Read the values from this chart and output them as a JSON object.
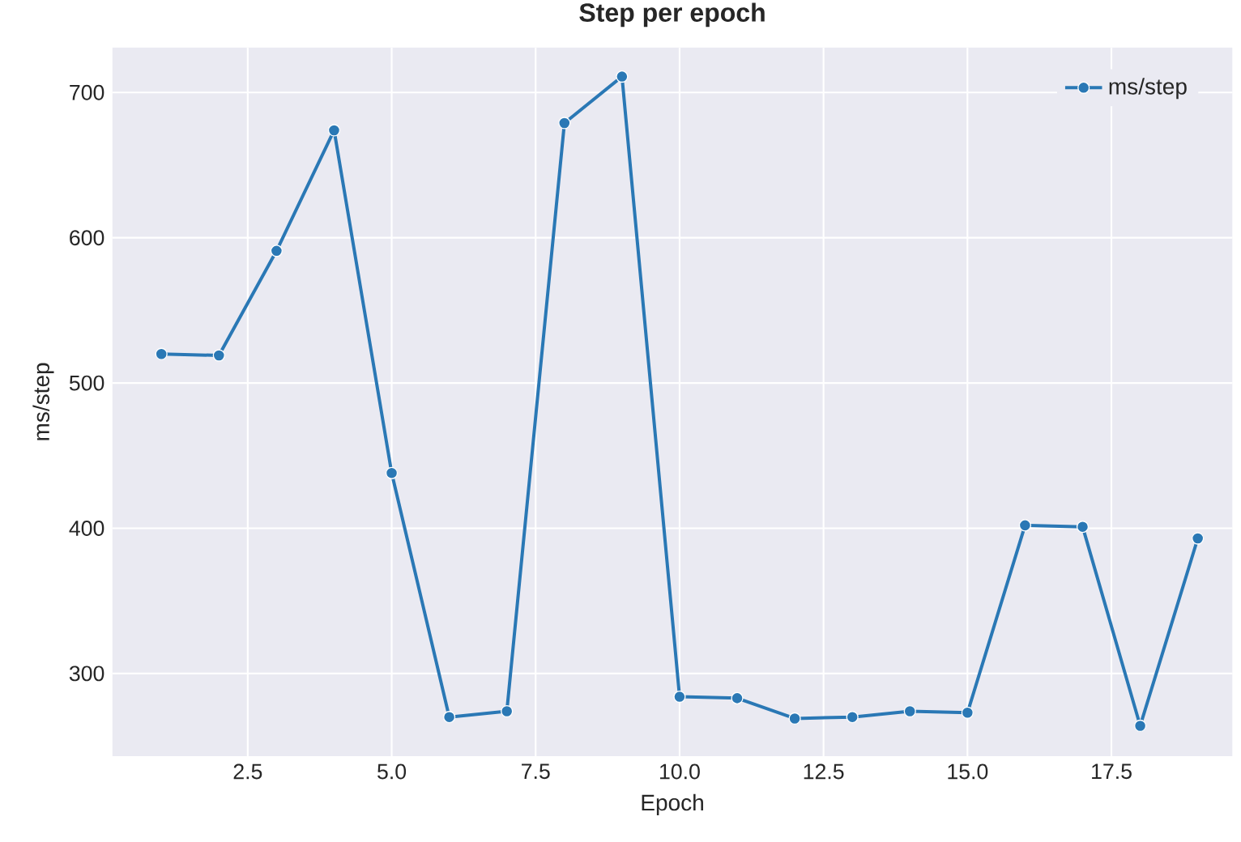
{
  "chart_data": {
    "type": "line",
    "title": "Step per epoch",
    "xlabel": "Epoch",
    "ylabel": "ms/step",
    "x": [
      1,
      2,
      3,
      4,
      5,
      6,
      7,
      8,
      9,
      10,
      11,
      12,
      13,
      14,
      15,
      16,
      17,
      18,
      19
    ],
    "series": [
      {
        "name": "ms/step",
        "color": "#2a78b5",
        "values": [
          520,
          519,
          591,
          674,
          438,
          270,
          274,
          679,
          711,
          284,
          283,
          269,
          270,
          274,
          273,
          402,
          401,
          264,
          393
        ]
      }
    ],
    "xlim": [
      0.15,
      19.6
    ],
    "ylim": [
      243,
      731
    ],
    "xticks": [
      2.5,
      {
        "value": 5,
        "label": "5.0"
      },
      7.5,
      {
        "value": 10,
        "label": "10.0"
      },
      12.5,
      {
        "value": 15,
        "label": "15.0"
      },
      17.5
    ],
    "yticks": [
      300,
      400,
      500,
      600,
      700
    ],
    "grid": true,
    "legend": "top right",
    "marker": "circle",
    "line_style": "solid"
  }
}
